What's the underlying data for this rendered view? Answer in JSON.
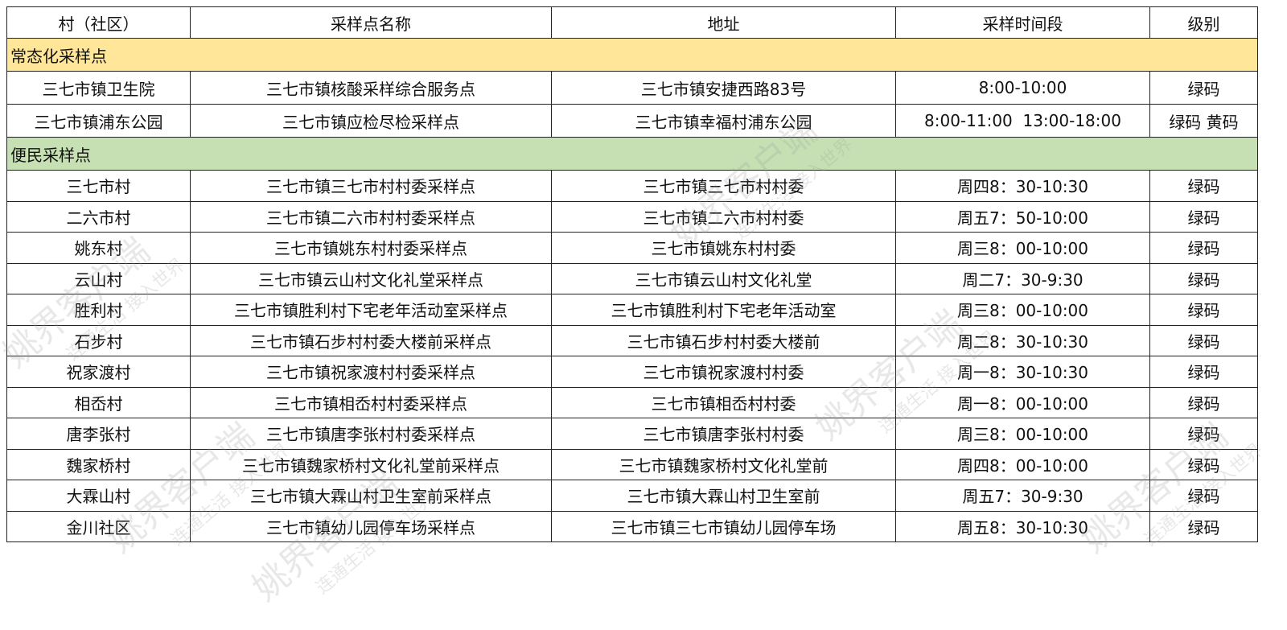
{
  "headers": [
    "村（社区）",
    "采样点名称",
    "地址",
    "采样时间段",
    "级别"
  ],
  "sections": [
    {
      "title": "常态化采样点",
      "color": "#ffe699",
      "rows": [
        [
          "三七市镇卫生院",
          "三七市镇核酸采样综合服务点",
          "三七市镇安捷西路83号",
          "8:00-10:00",
          "绿码"
        ],
        [
          "三七市镇浦东公园",
          "三七市镇应检尽检采样点",
          "三七市镇幸福村浦东公园",
          "8:00-11:00  13:00-18:00",
          "绿码 黄码"
        ]
      ]
    },
    {
      "title": "便民采样点",
      "color": "#c6e0b4",
      "rows": [
        [
          "三七市村",
          "三七市镇三七市村村委采样点",
          "三七市镇三七市村村委",
          "周四8：30-10:30",
          "绿码"
        ],
        [
          "二六市村",
          "三七市镇二六市村村委采样点",
          "三七市镇二六市村村委",
          "周五7：50-10:00",
          "绿码"
        ],
        [
          "姚东村",
          "三七市镇姚东村村委采样点",
          "三七市镇姚东村村委",
          "周三8：00-10:00",
          "绿码"
        ],
        [
          "云山村",
          "三七市镇云山村文化礼堂采样点",
          "三七市镇云山村文化礼堂",
          "周二7：30-9:30",
          "绿码"
        ],
        [
          "胜利村",
          "三七市镇胜利村下宅老年活动室采样点",
          "三七市镇胜利村下宅老年活动室",
          "周三8：00-10:00",
          "绿码"
        ],
        [
          "石步村",
          "三七市镇石步村村委大楼前采样点",
          "三七市镇石步村村委大楼前",
          "周二8：30-10:30",
          "绿码"
        ],
        [
          "祝家渡村",
          "三七市镇祝家渡村村委采样点",
          "三七市镇祝家渡村村委",
          "周一8：30-10:30",
          "绿码"
        ],
        [
          "相岙村",
          "三七市镇相岙村村委采样点",
          "三七市镇相岙村村委",
          "周一8：00-10:00",
          "绿码"
        ],
        [
          "唐李张村",
          "三七市镇唐李张村村委采样点",
          "三七市镇唐李张村村委",
          "周三8：00-10:00",
          "绿码"
        ],
        [
          "魏家桥村",
          "三七市镇魏家桥村文化礼堂前采样点",
          "三七市镇魏家桥村文化礼堂前",
          "周四8：00-10:00",
          "绿码"
        ],
        [
          "大霖山村",
          "三七市镇大霖山村卫生室前采样点",
          "三七市镇大霖山村卫生室前",
          "周五7：30-9:30",
          "绿码"
        ],
        [
          "金川社区",
          "三七市镇幼儿园停车场采样点",
          "三七市镇三七市镇幼儿园停车场",
          "周五8：30-10:30",
          "绿码"
        ]
      ]
    }
  ],
  "watermark": {
    "main": "姚界客户端",
    "sub": "连通生活 接入世界"
  }
}
